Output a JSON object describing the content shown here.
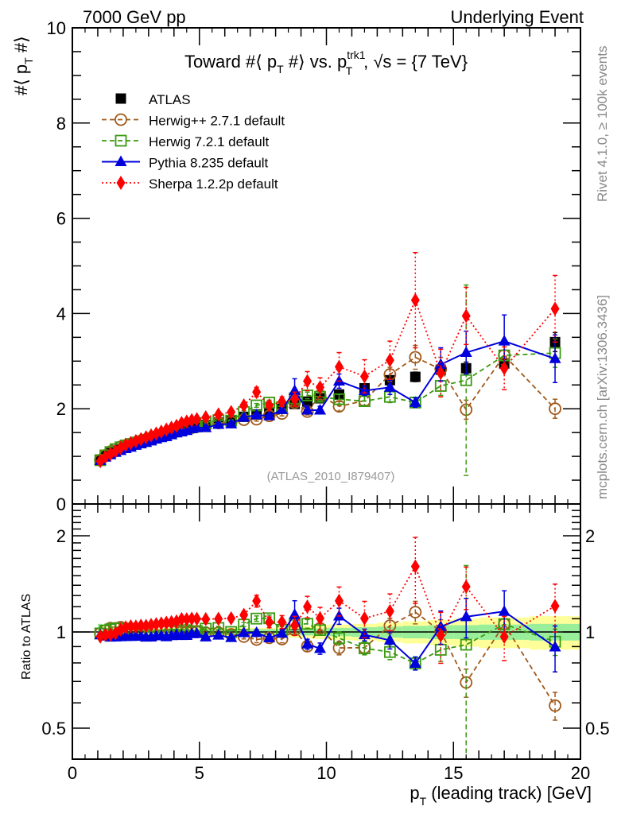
{
  "header": {
    "left": "7000 GeV pp",
    "right": "Underlying Event"
  },
  "side_labels": {
    "rivet": "Rivet 4.1.0, ≥ 100k events",
    "mcplots": "mcplots.cern.ch [arXiv:1306.3436]"
  },
  "chart_data": [
    {
      "type": "scatter",
      "panel": "main",
      "title": "Toward #⟨ p_T #⟩ vs. p_T^trk1, √s = {7 TeV}",
      "title_parts": {
        "pre": "Toward #⟨ p",
        "sub1": "T",
        "mid": " #⟩ vs. p",
        "sup": "trk1",
        "sub2": "T",
        "post": ", √s = {7 TeV}"
      },
      "ylabel": "#⟨ p_T #⟩",
      "ylabel_parts": {
        "pre": "#⟨ p",
        "sub": "T",
        "post": " #⟩"
      },
      "xlabel": "p_T (leading track) [GeV]",
      "xlim": [
        0,
        20
      ],
      "ylim": [
        0,
        10
      ],
      "yticks": [
        0,
        2,
        4,
        6,
        8,
        10
      ],
      "analysis_label": "(ATLAS_2010_I879407)",
      "legend_position": "top-left",
      "x": [
        1.1,
        1.3,
        1.5,
        1.7,
        1.9,
        2.1,
        2.3,
        2.5,
        2.7,
        2.9,
        3.1,
        3.3,
        3.5,
        3.7,
        3.9,
        4.1,
        4.3,
        4.5,
        4.7,
        4.9,
        5.25,
        5.75,
        6.25,
        6.75,
        7.25,
        7.75,
        8.25,
        8.75,
        9.25,
        9.75,
        10.5,
        11.5,
        12.5,
        13.5,
        14.5,
        15.5,
        17,
        19
      ],
      "series": [
        {
          "name": "ATLAS",
          "color": "#000000",
          "marker": "filled-square",
          "line": "none",
          "values": [
            0.93,
            1.01,
            1.07,
            1.12,
            1.16,
            1.2,
            1.23,
            1.27,
            1.3,
            1.34,
            1.37,
            1.4,
            1.43,
            1.46,
            1.49,
            1.52,
            1.55,
            1.58,
            1.6,
            1.62,
            1.66,
            1.71,
            1.75,
            1.83,
            1.88,
            1.93,
            2.0,
            2.1,
            2.15,
            2.22,
            2.3,
            2.43,
            2.6,
            2.67,
            2.82,
            2.85,
            2.95,
            3.4
          ],
          "errors": [
            0.02,
            0.02,
            0.02,
            0.02,
            0.02,
            0.02,
            0.02,
            0.02,
            0.02,
            0.02,
            0.02,
            0.02,
            0.02,
            0.02,
            0.02,
            0.02,
            0.02,
            0.02,
            0.02,
            0.02,
            0.02,
            0.02,
            0.03,
            0.03,
            0.03,
            0.04,
            0.04,
            0.05,
            0.05,
            0.06,
            0.06,
            0.07,
            0.08,
            0.1,
            0.11,
            0.13,
            0.15,
            0.2
          ]
        },
        {
          "name": "Herwig++ 2.7.1 default",
          "color": "#a0591a",
          "marker": "open-circle",
          "line": "dashed",
          "values": [
            0.92,
            1.02,
            1.1,
            1.15,
            1.2,
            1.23,
            1.26,
            1.29,
            1.32,
            1.35,
            1.38,
            1.41,
            1.44,
            1.47,
            1.5,
            1.53,
            1.55,
            1.58,
            1.6,
            1.62,
            1.65,
            1.7,
            1.72,
            1.77,
            1.78,
            1.85,
            1.9,
            2.13,
            1.94,
            2.28,
            2.05,
            2.17,
            2.72,
            3.08,
            2.83,
            1.98,
            3.12,
            2.0
          ],
          "errors": [
            0.01,
            0.01,
            0.01,
            0.01,
            0.01,
            0.01,
            0.01,
            0.01,
            0.01,
            0.01,
            0.01,
            0.01,
            0.01,
            0.01,
            0.01,
            0.01,
            0.01,
            0.01,
            0.01,
            0.01,
            0.02,
            0.02,
            0.02,
            0.03,
            0.04,
            0.04,
            0.05,
            0.06,
            0.07,
            0.08,
            0.1,
            0.1,
            0.15,
            0.25,
            0.25,
            0.2,
            0.25,
            0.2
          ]
        },
        {
          "name": "Herwig 7.2.1 default",
          "color": "#3a9a10",
          "marker": "open-square",
          "line": "dashed",
          "values": [
            0.92,
            1.02,
            1.09,
            1.15,
            1.19,
            1.23,
            1.26,
            1.29,
            1.32,
            1.35,
            1.38,
            1.41,
            1.44,
            1.48,
            1.51,
            1.54,
            1.57,
            1.6,
            1.61,
            1.63,
            1.7,
            1.76,
            1.75,
            1.93,
            2.07,
            2.13,
            2.03,
            2.22,
            2.28,
            2.25,
            2.2,
            2.16,
            2.25,
            2.13,
            2.48,
            2.6,
            3.12,
            3.17
          ],
          "errors": [
            0.01,
            0.01,
            0.01,
            0.01,
            0.01,
            0.01,
            0.01,
            0.01,
            0.01,
            0.01,
            0.01,
            0.01,
            0.01,
            0.01,
            0.01,
            0.01,
            0.01,
            0.01,
            0.01,
            0.01,
            0.02,
            0.02,
            0.02,
            0.03,
            0.04,
            0.05,
            0.05,
            0.06,
            0.07,
            0.08,
            0.1,
            0.1,
            0.12,
            0.1,
            0.2,
            2.0,
            0.25,
            0.3
          ]
        },
        {
          "name": "Pythia 8.235 default",
          "color": "#0000dd",
          "marker": "filled-triangle",
          "line": "solid",
          "values": [
            0.91,
            0.98,
            1.03,
            1.08,
            1.12,
            1.16,
            1.19,
            1.23,
            1.26,
            1.29,
            1.32,
            1.36,
            1.39,
            1.41,
            1.45,
            1.49,
            1.51,
            1.54,
            1.58,
            1.6,
            1.6,
            1.67,
            1.68,
            1.82,
            1.87,
            1.85,
            1.98,
            2.38,
            1.97,
            1.97,
            2.58,
            2.38,
            2.45,
            2.13,
            2.93,
            3.18,
            3.42,
            3.05
          ],
          "errors": [
            0.01,
            0.01,
            0.01,
            0.01,
            0.01,
            0.01,
            0.01,
            0.01,
            0.01,
            0.01,
            0.01,
            0.01,
            0.01,
            0.01,
            0.01,
            0.01,
            0.01,
            0.01,
            0.01,
            0.01,
            0.02,
            0.02,
            0.02,
            0.03,
            0.04,
            0.05,
            0.05,
            0.25,
            0.07,
            0.08,
            0.15,
            0.1,
            0.15,
            0.1,
            0.35,
            0.45,
            0.55,
            0.5
          ]
        },
        {
          "name": "Sherpa 1.2.2p default",
          "color": "#ff0000",
          "marker": "filled-diamond",
          "line": "dotted",
          "values": [
            0.9,
            0.99,
            1.05,
            1.11,
            1.18,
            1.24,
            1.28,
            1.32,
            1.36,
            1.4,
            1.44,
            1.48,
            1.52,
            1.56,
            1.6,
            1.64,
            1.7,
            1.73,
            1.76,
            1.78,
            1.82,
            1.88,
            1.93,
            2.07,
            2.35,
            2.07,
            2.15,
            2.2,
            2.58,
            2.45,
            2.88,
            2.68,
            3.02,
            4.28,
            2.75,
            3.95,
            2.85,
            4.1
          ],
          "errors": [
            0.01,
            0.01,
            0.01,
            0.01,
            0.01,
            0.01,
            0.01,
            0.01,
            0.01,
            0.01,
            0.01,
            0.01,
            0.01,
            0.01,
            0.01,
            0.01,
            0.01,
            0.01,
            0.01,
            0.01,
            0.03,
            0.03,
            0.04,
            0.05,
            0.1,
            0.08,
            0.1,
            0.15,
            0.2,
            0.2,
            0.3,
            0.35,
            0.4,
            1.0,
            0.5,
            0.6,
            0.45,
            0.7
          ]
        }
      ]
    },
    {
      "type": "scatter",
      "panel": "ratio",
      "ylabel": "Ratio to ATLAS",
      "xlabel": "p_T (leading track) [GeV]",
      "xlabel_parts": {
        "pre": "p",
        "sub": "T",
        "post": " (leading track) [GeV]"
      },
      "yscale": "log",
      "xlim": [
        0,
        20
      ],
      "ylim": [
        0.4,
        2.5
      ],
      "yticks": [
        0.5,
        1,
        2
      ],
      "ytick_labels": [
        "0.5",
        "1",
        "2"
      ],
      "xticks": [
        0,
        5,
        10,
        15,
        20
      ],
      "xtick_labels": [
        "0",
        "5",
        "10",
        "15",
        "20"
      ],
      "reference_line": 1,
      "bins": [
        [
          1.0,
          1.2
        ],
        [
          1.2,
          1.4
        ],
        [
          1.4,
          1.6
        ],
        [
          1.6,
          1.8
        ],
        [
          1.8,
          2.0
        ],
        [
          2.0,
          2.2
        ],
        [
          2.2,
          2.4
        ],
        [
          2.4,
          2.6
        ],
        [
          2.6,
          2.8
        ],
        [
          2.8,
          3.0
        ],
        [
          3.0,
          3.2
        ],
        [
          3.2,
          3.4
        ],
        [
          3.4,
          3.6
        ],
        [
          3.6,
          3.8
        ],
        [
          3.8,
          4.0
        ],
        [
          4.0,
          4.2
        ],
        [
          4.2,
          4.4
        ],
        [
          4.4,
          4.6
        ],
        [
          4.6,
          4.8
        ],
        [
          4.8,
          5.0
        ],
        [
          5.0,
          5.5
        ],
        [
          5.5,
          6.0
        ],
        [
          6.0,
          6.5
        ],
        [
          6.5,
          7.0
        ],
        [
          7.0,
          7.5
        ],
        [
          7.5,
          8.0
        ],
        [
          8.0,
          8.5
        ],
        [
          8.5,
          9.0
        ],
        [
          9.0,
          9.5
        ],
        [
          9.5,
          10.0
        ],
        [
          10,
          11
        ],
        [
          11,
          12
        ],
        [
          12,
          13
        ],
        [
          13,
          14
        ],
        [
          14,
          15
        ],
        [
          15,
          16
        ],
        [
          16,
          18
        ],
        [
          18,
          20
        ]
      ],
      "band_stat": [
        0.06,
        0.03,
        0.02,
        0.02,
        0.02,
        0.02,
        0.02,
        0.02,
        0.02,
        0.02,
        0.02,
        0.02,
        0.02,
        0.02,
        0.02,
        0.02,
        0.02,
        0.02,
        0.02,
        0.02,
        0.02,
        0.02,
        0.02,
        0.02,
        0.02,
        0.02,
        0.02,
        0.02,
        0.025,
        0.025,
        0.03,
        0.035,
        0.04,
        0.045,
        0.05,
        0.05,
        0.055,
        0.06
      ],
      "band_total": [
        0.06,
        0.035,
        0.03,
        0.03,
        0.03,
        0.03,
        0.03,
        0.03,
        0.03,
        0.03,
        0.03,
        0.03,
        0.03,
        0.03,
        0.03,
        0.03,
        0.03,
        0.03,
        0.03,
        0.03,
        0.03,
        0.03,
        0.03,
        0.03,
        0.03,
        0.03,
        0.035,
        0.04,
        0.045,
        0.05,
        0.055,
        0.06,
        0.07,
        0.08,
        0.09,
        0.1,
        0.11,
        0.12
      ],
      "colors": {
        "band_stat": "#99ee99",
        "band_total": "#ffff99"
      }
    }
  ]
}
